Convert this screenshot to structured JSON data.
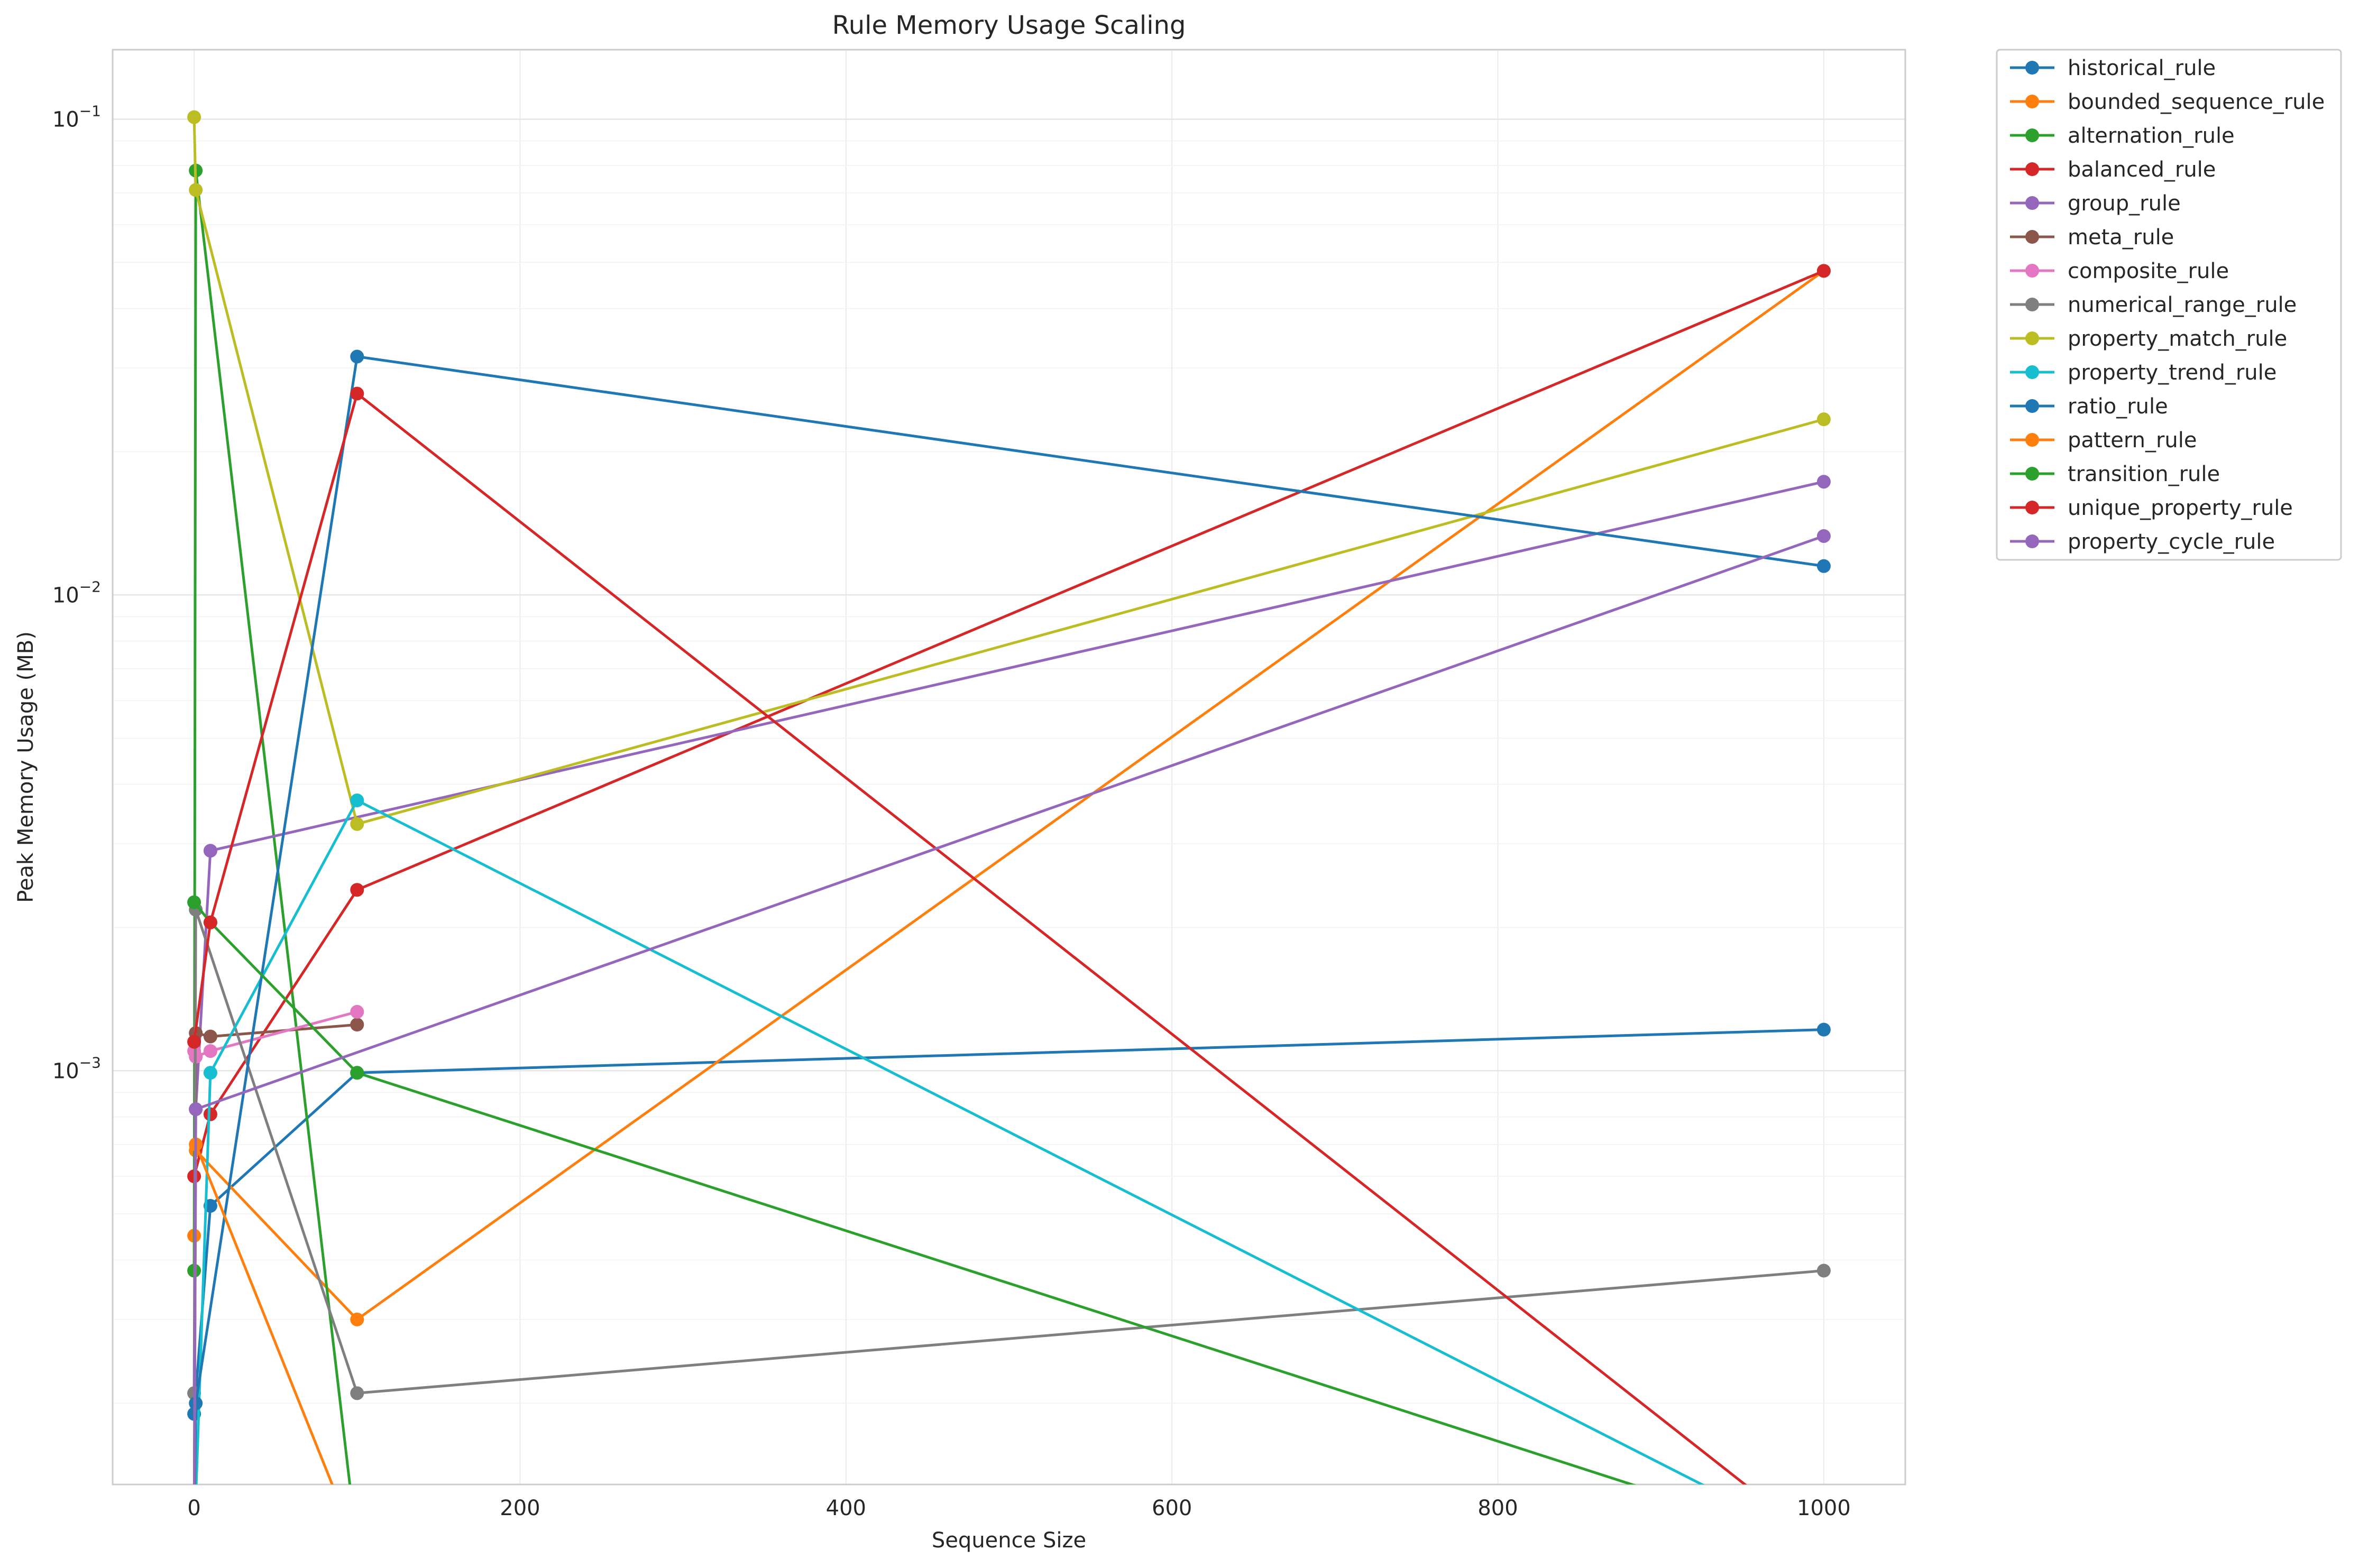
{
  "chart_data": {
    "type": "line",
    "title": "Rule Memory Usage Scaling",
    "xlabel": "Sequence Size",
    "ylabel": "Peak Memory Usage (MB)",
    "yscale": "log",
    "xlim": [
      -50,
      1050
    ],
    "ylim": [
      0.000135,
      0.14
    ],
    "x_ticks": [
      0,
      200,
      400,
      600,
      800,
      1000
    ],
    "x_tick_labels": [
      "0",
      "200",
      "400",
      "600",
      "800",
      "1000"
    ],
    "y_ticks": [
      0.001,
      0.01,
      0.1
    ],
    "y_tick_labels": [
      {
        "base": "10",
        "exp": "−3"
      },
      {
        "base": "10",
        "exp": "−2"
      },
      {
        "base": "10",
        "exp": "−1"
      }
    ],
    "grid": true,
    "legend_position": "outside-top-right",
    "series": [
      {
        "name": "historical_rule",
        "color": "#1f77b4",
        "points": [
          [
            0,
            0.00019
          ],
          [
            10,
            0.00052
          ],
          [
            100,
            0.00099
          ],
          [
            1000,
            0.00122
          ]
        ]
      },
      {
        "name": "bounded_sequence_rule",
        "color": "#ff7f0e",
        "points": [
          [
            0,
            0.00045
          ],
          [
            1,
            0.00068
          ],
          [
            100,
            0.0003
          ],
          [
            1000,
            0.048
          ]
        ]
      },
      {
        "name": "alternation_rule",
        "color": "#2ca02c",
        "points": [
          [
            0,
            0.00038
          ],
          [
            1,
            0.078
          ],
          [
            100,
            0.0001
          ],
          [
            1000,
            0.0001
          ]
        ]
      },
      {
        "name": "balanced_rule",
        "color": "#d62728",
        "points": [
          [
            0,
            0.0006
          ],
          [
            10,
            0.00081
          ],
          [
            100,
            0.0024
          ],
          [
            1000,
            0.048
          ]
        ]
      },
      {
        "name": "group_rule",
        "color": "#9467bd",
        "points": [
          [
            0,
            0.0001
          ],
          [
            1,
            0.00083
          ],
          [
            10,
            0.0029
          ],
          [
            1000,
            0.0173
          ]
        ]
      },
      {
        "name": "meta_rule",
        "color": "#8c564b",
        "points": [
          [
            0,
            0.0001
          ],
          [
            1,
            0.0012
          ],
          [
            10,
            0.00118
          ],
          [
            100,
            0.00125
          ]
        ]
      },
      {
        "name": "composite_rule",
        "color": "#e377c2",
        "points": [
          [
            0,
            0.0011
          ],
          [
            1,
            0.00107
          ],
          [
            10,
            0.0011
          ],
          [
            100,
            0.00133
          ]
        ]
      },
      {
        "name": "numerical_range_rule",
        "color": "#7f7f7f",
        "points": [
          [
            0,
            0.00021
          ],
          [
            1,
            0.00218
          ],
          [
            100,
            0.00021
          ],
          [
            1000,
            0.00038
          ]
        ]
      },
      {
        "name": "property_match_rule",
        "color": "#bcbd22",
        "points": [
          [
            0,
            0.101
          ],
          [
            1,
            0.071
          ],
          [
            100,
            0.0033
          ],
          [
            1000,
            0.0234
          ]
        ]
      },
      {
        "name": "property_trend_rule",
        "color": "#17becf",
        "points": [
          [
            0,
            0.0001
          ],
          [
            10,
            0.00099
          ],
          [
            100,
            0.0037
          ],
          [
            1000,
            0.0001
          ]
        ]
      },
      {
        "name": "ratio_rule",
        "color": "#1f77b4",
        "points": [
          [
            0,
            0.0001
          ],
          [
            1,
            0.0002
          ],
          [
            100,
            0.0317
          ],
          [
            1000,
            0.0115
          ]
        ]
      },
      {
        "name": "pattern_rule",
        "color": "#ff7f0e",
        "points": [
          [
            0,
            0.0001
          ],
          [
            1,
            0.0007
          ],
          [
            100,
            0.0001
          ],
          [
            1000,
            0.0001
          ]
        ]
      },
      {
        "name": "transition_rule",
        "color": "#2ca02c",
        "points": [
          [
            0,
            0.00226
          ],
          [
            10,
            0.00205
          ],
          [
            100,
            0.00099
          ],
          [
            1000,
            0.0001
          ]
        ]
      },
      {
        "name": "unique_property_rule",
        "color": "#d62728",
        "points": [
          [
            0,
            0.00115
          ],
          [
            10,
            0.00205
          ],
          [
            100,
            0.0265
          ],
          [
            1000,
            0.0001
          ]
        ]
      },
      {
        "name": "property_cycle_rule",
        "color": "#9467bd",
        "points": [
          [
            0,
            0.0001
          ],
          [
            1,
            0.00083
          ],
          [
            1000,
            0.0133
          ]
        ]
      }
    ]
  }
}
